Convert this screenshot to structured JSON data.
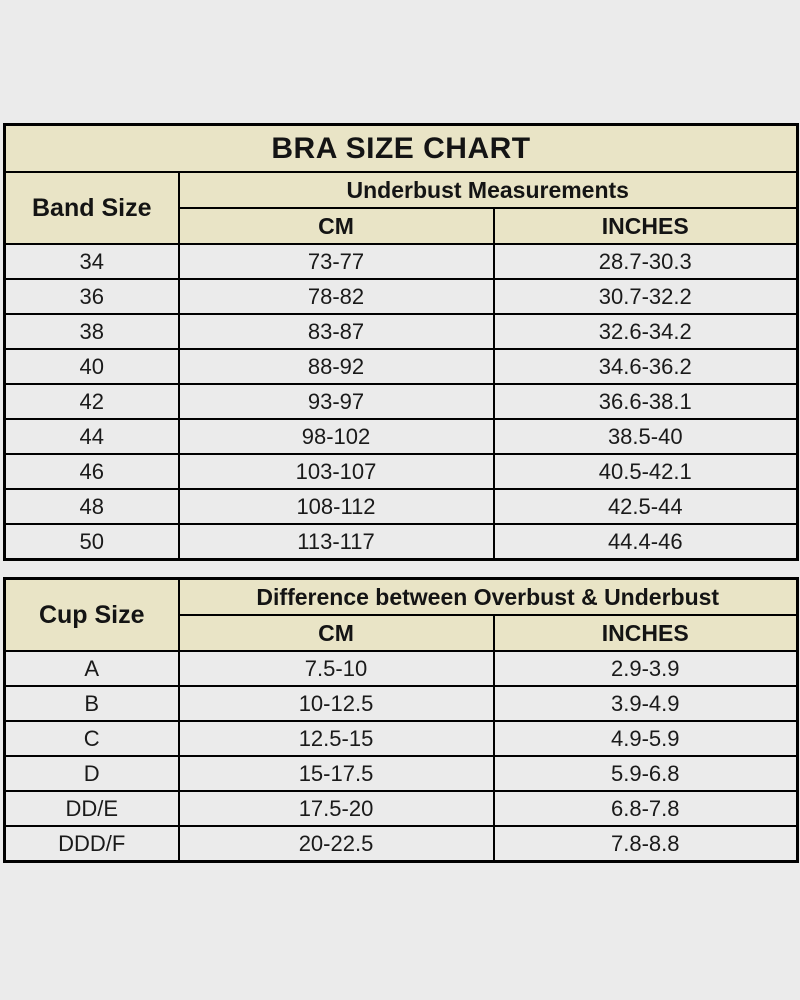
{
  "colors": {
    "page_background": "#ebebeb",
    "header_background": "#e9e4c6",
    "row_background": "#ebebeb",
    "border": "#000000",
    "text": "#1a1a1a"
  },
  "band_table": {
    "title": "BRA SIZE CHART",
    "row_header": "Band Size",
    "group_header": "Underbust Measurements",
    "col_headers": [
      "CM",
      "INCHES"
    ],
    "rows": [
      {
        "size": "34",
        "cm": "73-77",
        "inches": "28.7-30.3"
      },
      {
        "size": "36",
        "cm": "78-82",
        "inches": "30.7-32.2"
      },
      {
        "size": "38",
        "cm": "83-87",
        "inches": "32.6-34.2"
      },
      {
        "size": "40",
        "cm": "88-92",
        "inches": "34.6-36.2"
      },
      {
        "size": "42",
        "cm": "93-97",
        "inches": "36.6-38.1"
      },
      {
        "size": "44",
        "cm": "98-102",
        "inches": "38.5-40"
      },
      {
        "size": "46",
        "cm": "103-107",
        "inches": "40.5-42.1"
      },
      {
        "size": "48",
        "cm": "108-112",
        "inches": "42.5-44"
      },
      {
        "size": "50",
        "cm": "113-117",
        "inches": "44.4-46"
      }
    ]
  },
  "cup_table": {
    "row_header": "Cup Size",
    "group_header": "Difference between Overbust & Underbust",
    "col_headers": [
      "CM",
      "INCHES"
    ],
    "rows": [
      {
        "size": "A",
        "cm": "7.5-10",
        "inches": "2.9-3.9"
      },
      {
        "size": "B",
        "cm": "10-12.5",
        "inches": "3.9-4.9"
      },
      {
        "size": "C",
        "cm": "12.5-15",
        "inches": "4.9-5.9"
      },
      {
        "size": "D",
        "cm": "15-17.5",
        "inches": "5.9-6.8"
      },
      {
        "size": "DD/E",
        "cm": "17.5-20",
        "inches": "6.8-7.8"
      },
      {
        "size": "DDD/F",
        "cm": "20-22.5",
        "inches": "7.8-8.8"
      }
    ]
  },
  "chart_data": [
    {
      "type": "table",
      "title": "BRA SIZE CHART",
      "columns": [
        "Band Size",
        "Underbust Measurements CM",
        "Underbust Measurements INCHES"
      ],
      "rows": [
        [
          "34",
          "73-77",
          "28.7-30.3"
        ],
        [
          "36",
          "78-82",
          "30.7-32.2"
        ],
        [
          "38",
          "83-87",
          "32.6-34.2"
        ],
        [
          "40",
          "88-92",
          "34.6-36.2"
        ],
        [
          "42",
          "93-97",
          "36.6-38.1"
        ],
        [
          "44",
          "98-102",
          "38.5-40"
        ],
        [
          "46",
          "103-107",
          "40.5-42.1"
        ],
        [
          "48",
          "108-112",
          "42.5-44"
        ],
        [
          "50",
          "113-117",
          "44.4-46"
        ]
      ]
    },
    {
      "type": "table",
      "title": "Difference between Overbust & Underbust",
      "columns": [
        "Cup Size",
        "CM",
        "INCHES"
      ],
      "rows": [
        [
          "A",
          "7.5-10",
          "2.9-3.9"
        ],
        [
          "B",
          "10-12.5",
          "3.9-4.9"
        ],
        [
          "C",
          "12.5-15",
          "4.9-5.9"
        ],
        [
          "D",
          "15-17.5",
          "5.9-6.8"
        ],
        [
          "DD/E",
          "17.5-20",
          "6.8-7.8"
        ],
        [
          "DDD/F",
          "20-22.5",
          "7.8-8.8"
        ]
      ]
    }
  ]
}
